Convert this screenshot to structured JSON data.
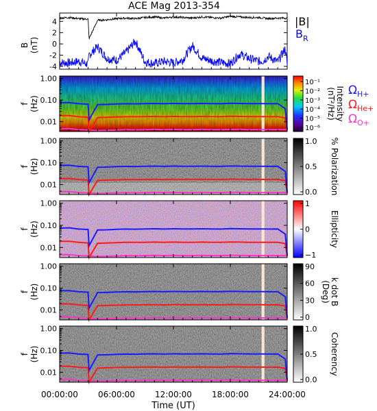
{
  "title": "ACE Mag 2013-354",
  "xaxis": {
    "label": "Time (UT)",
    "ticks": [
      "00:00:00",
      "06:00:00",
      "12:00:00",
      "18:00:00",
      "24:00:00"
    ]
  },
  "panels": {
    "b": {
      "ylabel_top": "B",
      "ylabel_bottom": "(nT)",
      "yticks": [
        "4",
        "2",
        "0",
        "-2",
        "-4"
      ],
      "legend": {
        "magnitude": "|B|",
        "radial": "B",
        "radial_sub": "R"
      }
    },
    "intensity": {
      "ylabel_top": "f",
      "ylabel_bottom": "(Hz)",
      "yticks": [
        "1.00",
        "0.10",
        "0.01"
      ],
      "cbar_label": "Intensity",
      "cbar_unit": "(nT²/Hz)",
      "cbar_ticks": [
        "10⁻¹",
        "10⁻²",
        "10⁻³",
        "10⁻⁴",
        "10⁻⁵",
        "10⁻⁶"
      ]
    },
    "polarization": {
      "ylabel_top": "f",
      "ylabel_bottom": "(Hz)",
      "yticks": [
        "1.00",
        "0.10",
        "0.01"
      ],
      "cbar_label": "% Polarization",
      "cbar_ticks": [
        "1.0",
        "0.5",
        "0.0"
      ]
    },
    "ellipticity": {
      "ylabel_top": "f",
      "ylabel_bottom": "(Hz)",
      "yticks": [
        "1.00",
        "0.10",
        "0.01"
      ],
      "cbar_label": "Ellipticity",
      "cbar_ticks": [
        "1",
        "0",
        "−1"
      ]
    },
    "kdotb": {
      "ylabel_top": "f",
      "ylabel_bottom": "(Hz)",
      "yticks": [
        "1.00",
        "0.10",
        "0.01"
      ],
      "cbar_label": "k dot B",
      "cbar_unit": "(Deg)",
      "cbar_ticks": [
        "90",
        "60",
        "30",
        "0"
      ]
    },
    "coherency": {
      "ylabel_top": "f",
      "ylabel_bottom": "(Hz)",
      "yticks": [
        "1.00",
        "0.10",
        "0.01"
      ],
      "cbar_label": "Coherency",
      "cbar_ticks": [
        "1.0",
        "0.5",
        "0.0"
      ]
    }
  },
  "gyro_legend": [
    {
      "symbol": "Ω",
      "sub": "H+",
      "color": "#1a1aff"
    },
    {
      "symbol": "Ω",
      "sub": "He+",
      "color": "#ff1a1a"
    },
    {
      "symbol": "Ω",
      "sub": "O+",
      "color": "#ff33cc"
    }
  ],
  "colors": {
    "magnitude": "#000000",
    "radial": "#0000ff",
    "gap": "#f5e6d3"
  },
  "chart_data": {
    "type": "line",
    "title": "ACE Mag 2013-354",
    "xlabel": "Time (UT)",
    "xlim": [
      "00:00:00",
      "24:00:00"
    ],
    "x_hours": [
      0,
      1,
      2,
      3,
      3.1,
      4,
      5,
      6,
      7,
      8,
      9,
      10,
      11,
      12,
      13,
      14,
      15,
      16,
      17,
      18,
      19,
      20,
      21,
      21.5,
      22,
      23,
      23.8,
      24
    ],
    "series": [
      {
        "name": "|B|",
        "ylabel": "B (nT)",
        "values": [
          4.6,
          4.7,
          4.5,
          4.4,
          0.9,
          4.2,
          4.3,
          4.5,
          4.6,
          4.5,
          4.7,
          4.8,
          4.6,
          4.8,
          4.7,
          4.6,
          4.8,
          4.7,
          4.6,
          4.9,
          4.8,
          4.7,
          4.7,
          4.6,
          4.5,
          4.6,
          4.6,
          4.5
        ]
      },
      {
        "name": "BR",
        "ylabel": "B (nT)",
        "values": [
          -3.3,
          -3.4,
          -3.1,
          -3.6,
          -2.0,
          -0.5,
          -2.6,
          -2.9,
          -1.5,
          0.5,
          -3.2,
          -3.5,
          -3.1,
          -3.4,
          -2.8,
          -0.3,
          -2.5,
          -3.0,
          -3.3,
          -3.5,
          -1.8,
          -2.6,
          -3.1,
          -3.0,
          -2.2,
          -3.2,
          -0.8,
          -3.8
        ]
      },
      {
        "name": "ΩH+",
        "ylabel": "f (Hz)",
        "values": [
          0.075,
          0.077,
          0.068,
          0.065,
          0.012,
          0.062,
          0.063,
          0.066,
          0.068,
          0.067,
          0.069,
          0.07,
          0.068,
          0.07,
          0.069,
          0.069,
          0.07,
          0.069,
          0.068,
          0.071,
          0.07,
          0.069,
          0.069,
          0.069,
          0.068,
          0.069,
          0.04,
          0.0045
        ]
      },
      {
        "name": "ΩHe+",
        "ylabel": "f (Hz)",
        "values": [
          0.019,
          0.019,
          0.017,
          0.016,
          0.003,
          0.0155,
          0.016,
          0.0165,
          0.017,
          0.017,
          0.0172,
          0.0175,
          0.017,
          0.0175,
          0.0172,
          0.0172,
          0.0175,
          0.0172,
          0.017,
          0.0178,
          0.0175,
          0.0172,
          0.0172,
          0.0172,
          0.017,
          0.0172,
          0.015,
          0.004
        ]
      },
      {
        "name": "ΩO+",
        "ylabel": "f (Hz)",
        "values": [
          0.0047,
          0.0048,
          0.0043,
          0.0041,
          0.0041,
          0.0039,
          0.004,
          0.0041,
          0.0043,
          0.0042,
          0.0043,
          0.0044,
          0.0043,
          0.0044,
          0.0043,
          0.0043,
          0.0044,
          0.0043,
          0.0043,
          0.0044,
          0.0044,
          0.0043,
          0.0043,
          0.0043,
          0.0043,
          0.0043,
          0.0043,
          0.0043
        ]
      }
    ],
    "b_ylim": [
      -4.5,
      5.5
    ],
    "f_ylim": [
      0.0035,
      1.3
    ],
    "f_scale": "log",
    "data_gap_hours": [
      21.3,
      21.6
    ]
  }
}
